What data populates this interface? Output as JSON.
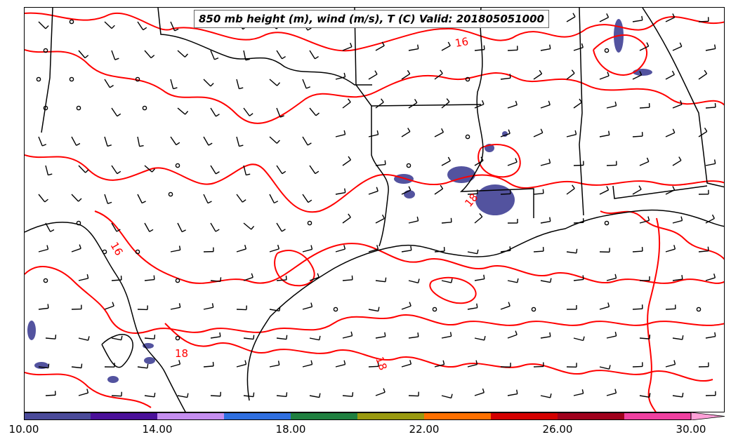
{
  "title": "850 mb height (m), wind (m/s), T (C) Valid: 201805051000",
  "colorbar": {
    "colors": [
      "#4a4a9a",
      "#4a109a",
      "#c58ef0",
      "#2f6fe0",
      "#1f8040",
      "#9a9a10",
      "#ff7000",
      "#d40000",
      "#a0001c",
      "#f040a0",
      "#ffa0d8"
    ],
    "tick_labels": [
      "10.00",
      "14.00",
      "18.00",
      "22.00",
      "26.00",
      "30.00"
    ]
  },
  "isotherm_labels": [
    "16",
    "16",
    "18",
    "18",
    "18"
  ],
  "colors": {
    "isotherm": "#ff0000",
    "boundary": "#000000",
    "precip": "#4a4a9a"
  },
  "icons": [
    "wind-barb-icon",
    "calm-circle-icon"
  ]
}
